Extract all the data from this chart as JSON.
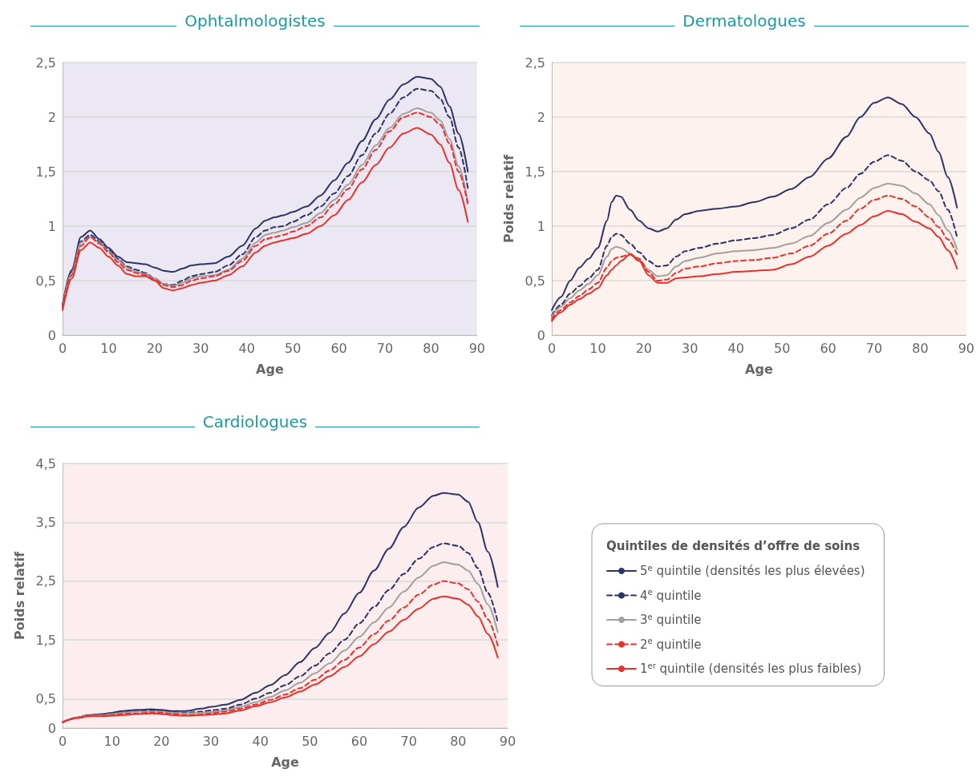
{
  "chart_data": [
    {
      "type": "line",
      "title": "Ophtalmologistes",
      "xlabel": "Age",
      "xlim": [
        0,
        90
      ],
      "xticks": [
        0,
        10,
        20,
        30,
        40,
        50,
        60,
        70,
        80,
        90
      ],
      "ylim": [
        0,
        2.5
      ],
      "yticks": [
        0,
        {
          "value": 0.5,
          "label": "0,5"
        },
        1,
        {
          "value": 1.5,
          "label": "1,5"
        },
        2,
        {
          "value": 2.5,
          "label": "2,5"
        }
      ],
      "grid": "y",
      "legend": false,
      "marker": "none",
      "x": [
        0,
        2,
        4,
        6,
        8,
        10,
        12,
        14,
        16,
        18,
        20,
        22,
        24,
        26,
        28,
        30,
        33,
        36,
        39,
        42,
        44,
        46,
        48,
        50,
        53,
        56,
        59,
        62,
        65,
        68,
        71,
        74,
        77,
        80,
        82,
        84,
        86,
        88
      ],
      "series": [
        {
          "color": "#2e3266",
          "line_style": "solid",
          "values": [
            0.28,
            0.6,
            0.9,
            0.96,
            0.88,
            0.8,
            0.72,
            0.67,
            0.66,
            0.65,
            0.62,
            0.59,
            0.58,
            0.61,
            0.64,
            0.65,
            0.66,
            0.72,
            0.82,
            0.98,
            1.05,
            1.08,
            1.1,
            1.13,
            1.18,
            1.28,
            1.42,
            1.58,
            1.78,
            1.98,
            2.16,
            2.3,
            2.37,
            2.35,
            2.28,
            2.1,
            1.85,
            1.5
          ]
        },
        {
          "color": "#2e3266",
          "line_style": "dashed",
          "values": [
            0.27,
            0.58,
            0.86,
            0.92,
            0.86,
            0.78,
            0.7,
            0.63,
            0.6,
            0.57,
            0.52,
            0.47,
            0.46,
            0.5,
            0.54,
            0.56,
            0.58,
            0.64,
            0.74,
            0.9,
            0.96,
            0.99,
            1.0,
            1.04,
            1.1,
            1.18,
            1.3,
            1.46,
            1.65,
            1.85,
            2.03,
            2.18,
            2.26,
            2.24,
            2.17,
            2.0,
            1.72,
            1.35
          ]
        },
        {
          "color": "#a0a0a0",
          "line_style": "solid",
          "values": [
            0.26,
            0.57,
            0.85,
            0.9,
            0.85,
            0.77,
            0.69,
            0.62,
            0.58,
            0.56,
            0.52,
            0.47,
            0.45,
            0.48,
            0.52,
            0.54,
            0.55,
            0.6,
            0.7,
            0.85,
            0.92,
            0.94,
            0.96,
            0.99,
            1.03,
            1.12,
            1.24,
            1.38,
            1.56,
            1.74,
            1.9,
            2.03,
            2.08,
            2.04,
            1.97,
            1.8,
            1.55,
            1.22
          ]
        },
        {
          "color": "#e8312a",
          "line_style": "dashed",
          "values": [
            0.25,
            0.55,
            0.82,
            0.9,
            0.84,
            0.76,
            0.67,
            0.6,
            0.57,
            0.55,
            0.51,
            0.46,
            0.44,
            0.46,
            0.5,
            0.52,
            0.54,
            0.59,
            0.68,
            0.82,
            0.88,
            0.9,
            0.92,
            0.95,
            1.0,
            1.08,
            1.2,
            1.34,
            1.52,
            1.7,
            1.87,
            2.0,
            2.04,
            2.0,
            1.93,
            1.76,
            1.5,
            1.2
          ]
        },
        {
          "color": "#e8312a",
          "line_style": "solid",
          "values": [
            0.23,
            0.52,
            0.78,
            0.85,
            0.8,
            0.72,
            0.64,
            0.56,
            0.54,
            0.54,
            0.5,
            0.43,
            0.41,
            0.43,
            0.46,
            0.48,
            0.5,
            0.55,
            0.63,
            0.76,
            0.82,
            0.85,
            0.87,
            0.89,
            0.93,
            1.0,
            1.1,
            1.24,
            1.4,
            1.56,
            1.72,
            1.85,
            1.9,
            1.84,
            1.75,
            1.58,
            1.33,
            1.04
          ]
        }
      ]
    },
    {
      "type": "line",
      "title": "Dermatologues",
      "xlabel": "Age",
      "ylabel": "Poids relatif",
      "xlim": [
        0,
        90
      ],
      "xticks": [
        0,
        10,
        20,
        30,
        40,
        50,
        60,
        70,
        80,
        90
      ],
      "ylim": [
        0,
        2.5
      ],
      "yticks": [
        0,
        {
          "value": 0.5,
          "label": "0,5"
        },
        1,
        {
          "value": 1.5,
          "label": "1,5"
        },
        2,
        {
          "value": 2.5,
          "label": "2,5"
        }
      ],
      "grid": "y",
      "legend": false,
      "marker": "none",
      "x": [
        0,
        2,
        4,
        6,
        8,
        10,
        12,
        13,
        14,
        15,
        17,
        19,
        21,
        23,
        25,
        27,
        29,
        32,
        36,
        40,
        44,
        48,
        52,
        56,
        60,
        64,
        67,
        70,
        73,
        76,
        79,
        82,
        84,
        86,
        88
      ],
      "series": [
        {
          "color": "#2e3266",
          "line_style": "solid",
          "values": [
            0.23,
            0.35,
            0.5,
            0.62,
            0.7,
            0.8,
            1.05,
            1.22,
            1.28,
            1.27,
            1.15,
            1.05,
            0.98,
            0.95,
            0.98,
            1.06,
            1.11,
            1.14,
            1.16,
            1.18,
            1.22,
            1.27,
            1.34,
            1.45,
            1.62,
            1.82,
            2.0,
            2.13,
            2.18,
            2.12,
            2.0,
            1.85,
            1.68,
            1.45,
            1.17
          ]
        },
        {
          "color": "#2e3266",
          "line_style": "dashed",
          "values": [
            0.18,
            0.28,
            0.38,
            0.45,
            0.52,
            0.6,
            0.82,
            0.9,
            0.93,
            0.92,
            0.84,
            0.76,
            0.68,
            0.63,
            0.64,
            0.72,
            0.77,
            0.8,
            0.84,
            0.87,
            0.89,
            0.92,
            0.98,
            1.06,
            1.2,
            1.35,
            1.48,
            1.59,
            1.65,
            1.6,
            1.5,
            1.42,
            1.32,
            1.15,
            0.9
          ]
        },
        {
          "color": "#a0a0a0",
          "line_style": "solid",
          "values": [
            0.17,
            0.26,
            0.34,
            0.41,
            0.47,
            0.55,
            0.72,
            0.79,
            0.81,
            0.8,
            0.75,
            0.69,
            0.6,
            0.54,
            0.55,
            0.63,
            0.68,
            0.71,
            0.75,
            0.77,
            0.78,
            0.8,
            0.84,
            0.91,
            1.03,
            1.15,
            1.26,
            1.35,
            1.39,
            1.37,
            1.3,
            1.2,
            1.1,
            0.96,
            0.79
          ]
        },
        {
          "color": "#e8312a",
          "line_style": "dashed",
          "values": [
            0.15,
            0.23,
            0.3,
            0.36,
            0.42,
            0.48,
            0.62,
            0.68,
            0.71,
            0.72,
            0.74,
            0.7,
            0.58,
            0.5,
            0.51,
            0.57,
            0.61,
            0.63,
            0.66,
            0.68,
            0.69,
            0.71,
            0.75,
            0.82,
            0.93,
            1.05,
            1.16,
            1.24,
            1.28,
            1.25,
            1.18,
            1.08,
            0.99,
            0.88,
            0.74
          ]
        },
        {
          "color": "#e8312a",
          "line_style": "solid",
          "values": [
            0.13,
            0.21,
            0.28,
            0.33,
            0.38,
            0.43,
            0.55,
            0.6,
            0.64,
            0.68,
            0.74,
            0.68,
            0.55,
            0.48,
            0.48,
            0.52,
            0.53,
            0.54,
            0.56,
            0.58,
            0.59,
            0.6,
            0.65,
            0.72,
            0.82,
            0.93,
            1.01,
            1.09,
            1.14,
            1.11,
            1.04,
            0.98,
            0.9,
            0.78,
            0.61
          ]
        }
      ]
    },
    {
      "type": "line",
      "title": "Cardiologues",
      "xlabel": "Age",
      "ylabel": "Poids relatif",
      "legend_title": "Quintiles de densités d’offre de soins",
      "xlim": [
        0,
        90
      ],
      "xticks": [
        0,
        10,
        20,
        30,
        40,
        50,
        60,
        70,
        80,
        90
      ],
      "ylim": [
        0,
        4.5
      ],
      "yticks": [
        0,
        {
          "value": 0.5,
          "label": "0,5"
        },
        {
          "value": 1.5,
          "label": "1,5"
        },
        {
          "value": 2.5,
          "label": "2,5"
        },
        {
          "value": 3.5,
          "label": "3,5"
        },
        {
          "value": 4.5,
          "label": "4,5"
        }
      ],
      "grid": "y",
      "legend": "right",
      "marker": "none",
      "x": [
        0,
        3,
        5,
        8,
        10,
        12,
        15,
        18,
        20,
        22,
        25,
        28,
        30,
        33,
        36,
        39,
        42,
        45,
        48,
        51,
        54,
        57,
        60,
        63,
        66,
        69,
        72,
        75,
        77,
        80,
        82,
        84,
        86,
        88
      ],
      "series": [
        {
          "name": "5$^{e}$ quintile (densités les plus élevées)",
          "color": "#2e3266",
          "line_style": "solid",
          "values": [
            0.1,
            0.18,
            0.22,
            0.24,
            0.26,
            0.29,
            0.31,
            0.32,
            0.31,
            0.29,
            0.29,
            0.33,
            0.36,
            0.4,
            0.48,
            0.6,
            0.73,
            0.9,
            1.12,
            1.36,
            1.62,
            1.95,
            2.3,
            2.68,
            3.05,
            3.42,
            3.75,
            3.95,
            4.0,
            3.97,
            3.85,
            3.5,
            3.0,
            2.4
          ]
        },
        {
          "name": "4$^{e}$ quintile",
          "color": "#2e3266",
          "line_style": "dashed",
          "values": [
            0.1,
            0.18,
            0.21,
            0.23,
            0.25,
            0.27,
            0.29,
            0.3,
            0.29,
            0.27,
            0.26,
            0.28,
            0.3,
            0.33,
            0.4,
            0.5,
            0.6,
            0.73,
            0.88,
            1.06,
            1.27,
            1.5,
            1.78,
            2.06,
            2.35,
            2.62,
            2.88,
            3.08,
            3.14,
            3.1,
            2.98,
            2.72,
            2.3,
            1.8
          ]
        },
        {
          "name": "3$^{e}$ quintile",
          "color": "#a0a0a0",
          "line_style": "solid",
          "values": [
            0.1,
            0.18,
            0.21,
            0.22,
            0.24,
            0.26,
            0.28,
            0.28,
            0.28,
            0.26,
            0.25,
            0.26,
            0.27,
            0.3,
            0.36,
            0.44,
            0.53,
            0.64,
            0.77,
            0.93,
            1.1,
            1.32,
            1.55,
            1.8,
            2.05,
            2.32,
            2.56,
            2.76,
            2.82,
            2.78,
            2.68,
            2.45,
            2.1,
            1.63
          ]
        },
        {
          "name": "2$^{e}$ quintile",
          "color": "#e8312a",
          "line_style": "dashed",
          "values": [
            0.1,
            0.17,
            0.2,
            0.21,
            0.22,
            0.24,
            0.25,
            0.26,
            0.26,
            0.24,
            0.22,
            0.23,
            0.25,
            0.28,
            0.33,
            0.4,
            0.48,
            0.57,
            0.68,
            0.82,
            0.98,
            1.16,
            1.37,
            1.6,
            1.83,
            2.05,
            2.27,
            2.44,
            2.5,
            2.46,
            2.36,
            2.15,
            1.85,
            1.4
          ]
        },
        {
          "name": "1$^{er}$ quintile (densités les plus faibles)",
          "color": "#e8312a",
          "line_style": "solid",
          "values": [
            0.1,
            0.17,
            0.2,
            0.2,
            0.21,
            0.22,
            0.24,
            0.25,
            0.24,
            0.22,
            0.21,
            0.22,
            0.23,
            0.25,
            0.3,
            0.37,
            0.44,
            0.52,
            0.62,
            0.74,
            0.88,
            1.04,
            1.22,
            1.43,
            1.64,
            1.84,
            2.03,
            2.2,
            2.24,
            2.2,
            2.1,
            1.9,
            1.6,
            1.2
          ]
        }
      ]
    }
  ]
}
